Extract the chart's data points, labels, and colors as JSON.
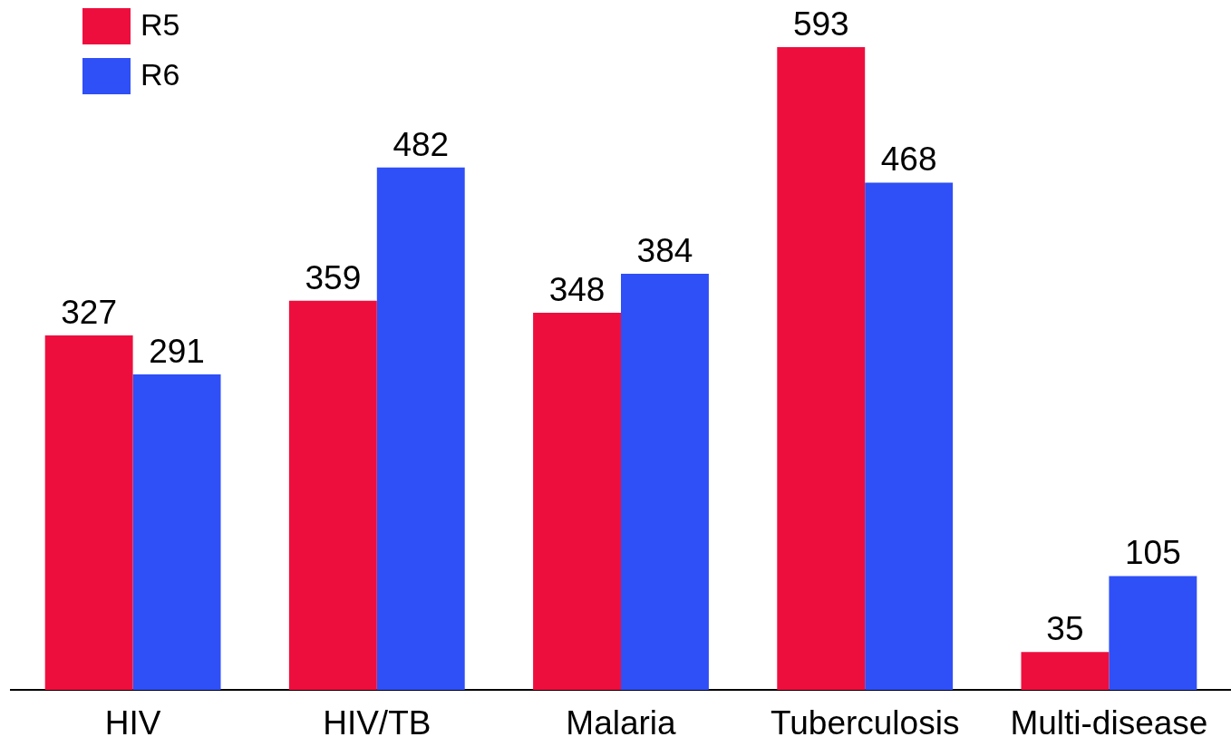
{
  "chart_data": {
    "type": "bar",
    "categories": [
      "HIV",
      "HIV/TB",
      "Malaria",
      "Tuberculosis",
      "Multi-disease"
    ],
    "series": [
      {
        "name": "R5",
        "color": "#ee0e3e",
        "values": [
          327,
          359,
          348,
          593,
          35
        ]
      },
      {
        "name": "R6",
        "color": "#2f4ff7",
        "values": [
          291,
          482,
          384,
          468,
          105
        ]
      }
    ],
    "data_labels": true,
    "legend": "top left",
    "tick_labels": "x"
  }
}
